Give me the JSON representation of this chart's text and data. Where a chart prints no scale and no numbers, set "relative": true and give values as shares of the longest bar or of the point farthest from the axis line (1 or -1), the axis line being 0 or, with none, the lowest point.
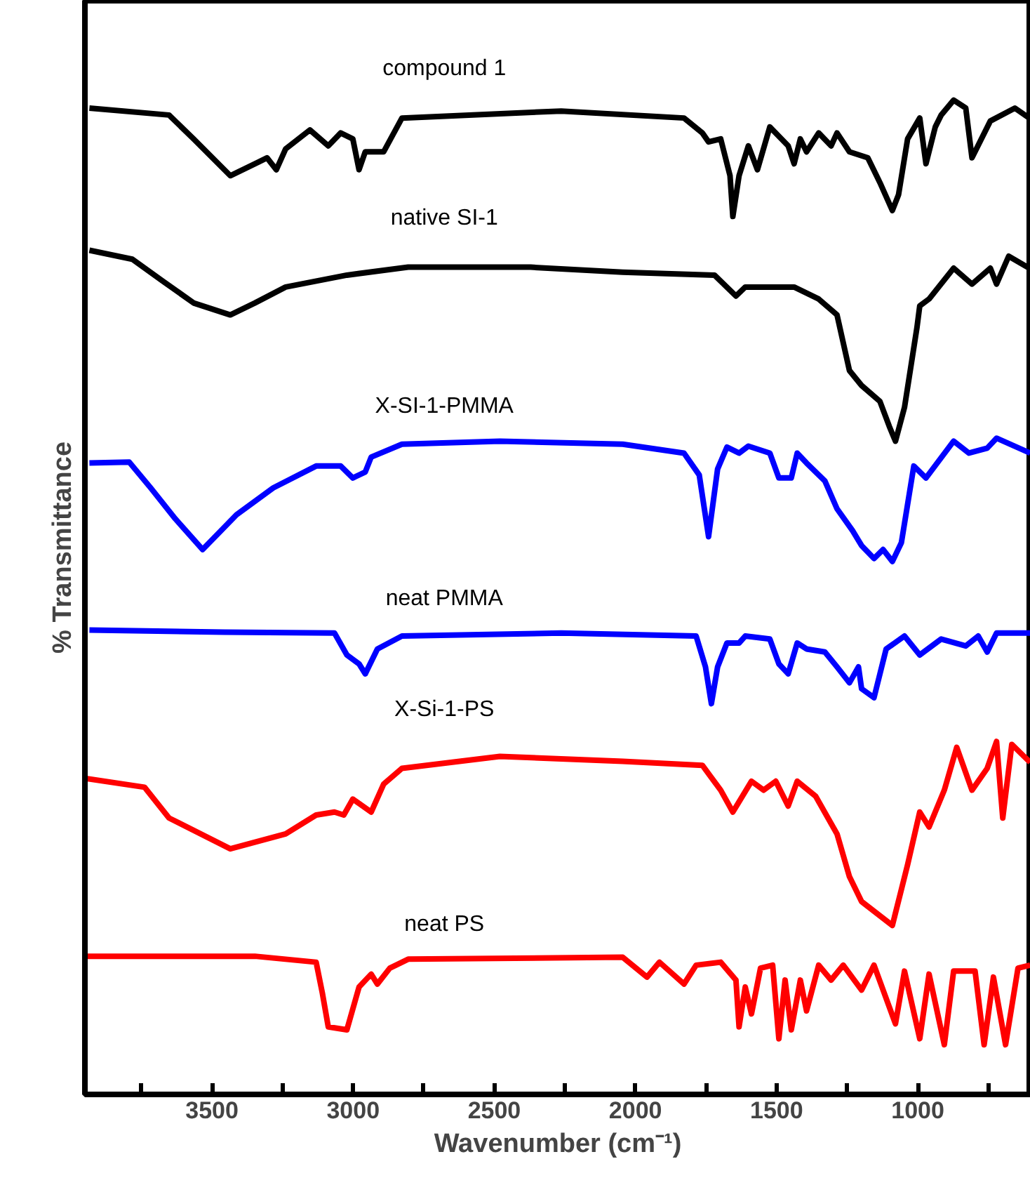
{
  "chart_data": {
    "type": "line",
    "relative": true,
    "xlabel": "Wavenumber (cm⁻¹)",
    "ylabel": "% Transmittance",
    "xlim": [
      3950,
      600
    ],
    "xticks": [
      {
        "value": 3750,
        "label": null
      },
      3500,
      {
        "value": 3250,
        "label": null
      },
      3000,
      {
        "value": 2750,
        "label": null
      },
      2500,
      {
        "value": 2250,
        "label": null
      },
      2000,
      {
        "value": 1750,
        "label": null
      },
      1500,
      {
        "value": 1250,
        "label": null
      },
      1000,
      {
        "value": 750,
        "label": null
      }
    ],
    "grid": false,
    "line_style": "solid",
    "marker": "none",
    "series": [
      {
        "name": "compound 1",
        "color": "#000000",
        "x": [
          3934,
          3652,
          3565,
          3435,
          3348,
          3305,
          3272,
          3239,
          3153,
          3088,
          3044,
          3001,
          2979,
          2957,
          2892,
          2827,
          2263,
          1828,
          1763,
          1741,
          1698,
          1665,
          1655,
          1633,
          1600,
          1568,
          1524,
          1459,
          1438,
          1416,
          1394,
          1351,
          1307,
          1286,
          1242,
          1177,
          1134,
          1090,
          1068,
          1036,
          993,
          971,
          938,
          917,
          873,
          830,
          808,
          743,
          656,
          605
        ],
        "values": [
          0.992,
          0.985,
          0.961,
          0.924,
          0.936,
          0.942,
          0.93,
          0.951,
          0.97,
          0.954,
          0.967,
          0.961,
          0.93,
          0.948,
          0.948,
          0.982,
          0.989,
          0.982,
          0.967,
          0.958,
          0.961,
          0.924,
          0.883,
          0.924,
          0.954,
          0.93,
          0.973,
          0.954,
          0.936,
          0.961,
          0.948,
          0.967,
          0.954,
          0.967,
          0.948,
          0.942,
          0.917,
          0.889,
          0.905,
          0.961,
          0.982,
          0.936,
          0.973,
          0.985,
          1.0,
          0.992,
          0.942,
          0.979,
          0.992,
          0.982
        ]
      },
      {
        "name": "native SI-1",
        "color": "#000000",
        "x": [
          3934,
          3782,
          3674,
          3565,
          3435,
          3348,
          3239,
          3022,
          2805,
          2371,
          2045,
          1720,
          1644,
          1611,
          1438,
          1351,
          1286,
          1242,
          1199,
          1134,
          1101,
          1079,
          1047,
          1003,
          993,
          960,
          873,
          808,
          743,
          721,
          678,
          605
        ],
        "values": [
          0.849,
          0.84,
          0.818,
          0.796,
          0.784,
          0.796,
          0.812,
          0.824,
          0.832,
          0.832,
          0.827,
          0.824,
          0.803,
          0.812,
          0.812,
          0.8,
          0.784,
          0.728,
          0.713,
          0.697,
          0.672,
          0.657,
          0.691,
          0.771,
          0.793,
          0.8,
          0.831,
          0.815,
          0.831,
          0.815,
          0.843,
          0.831
        ]
      },
      {
        "name": "X-SI-1-PMMA",
        "color": "#0000ff",
        "x": [
          3934,
          3793,
          3717,
          3630,
          3533,
          3413,
          3283,
          3131,
          3044,
          3001,
          2957,
          2936,
          2827,
          2480,
          2045,
          1828,
          1774,
          1741,
          1709,
          1676,
          1633,
          1600,
          1524,
          1492,
          1448,
          1427,
          1394,
          1329,
          1286,
          1231,
          1199,
          1155,
          1123,
          1090,
          1058,
          1014,
          971,
          873,
          819,
          754,
          721,
          602
        ],
        "values": [
          0.635,
          0.636,
          0.61,
          0.579,
          0.548,
          0.583,
          0.61,
          0.632,
          0.632,
          0.62,
          0.626,
          0.641,
          0.654,
          0.657,
          0.654,
          0.645,
          0.623,
          0.561,
          0.629,
          0.651,
          0.645,
          0.652,
          0.645,
          0.62,
          0.62,
          0.645,
          0.635,
          0.617,
          0.589,
          0.567,
          0.552,
          0.539,
          0.548,
          0.536,
          0.555,
          0.632,
          0.62,
          0.657,
          0.645,
          0.65,
          0.66,
          0.645
        ]
      },
      {
        "name": "neat PMMA",
        "color": "#0000ff",
        "x": [
          3934,
          3457,
          3066,
          3022,
          2979,
          2957,
          2914,
          2827,
          2263,
          1785,
          1752,
          1731,
          1709,
          1676,
          1633,
          1611,
          1524,
          1492,
          1459,
          1427,
          1394,
          1329,
          1286,
          1242,
          1210,
          1199,
          1155,
          1112,
          1047,
          993,
          917,
          830,
          786,
          754,
          721,
          602
        ],
        "values": [
          0.467,
          0.465,
          0.464,
          0.442,
          0.433,
          0.423,
          0.448,
          0.461,
          0.464,
          0.461,
          0.43,
          0.393,
          0.43,
          0.454,
          0.454,
          0.461,
          0.458,
          0.433,
          0.423,
          0.454,
          0.448,
          0.445,
          0.43,
          0.414,
          0.43,
          0.408,
          0.399,
          0.448,
          0.461,
          0.442,
          0.458,
          0.451,
          0.461,
          0.445,
          0.464,
          0.464
        ]
      },
      {
        "name": "X-Si-1-PS",
        "color": "#ff0000",
        "x": [
          3950,
          3739,
          3652,
          3435,
          3239,
          3131,
          3066,
          3033,
          3001,
          2936,
          2892,
          2827,
          2480,
          2045,
          1763,
          1698,
          1655,
          1589,
          1546,
          1503,
          1459,
          1427,
          1362,
          1286,
          1242,
          1199,
          1090,
          1036,
          993,
          960,
          906,
          862,
          808,
          754,
          721,
          699,
          667,
          602
        ],
        "values": [
          0.318,
          0.309,
          0.278,
          0.247,
          0.262,
          0.281,
          0.284,
          0.281,
          0.297,
          0.284,
          0.312,
          0.328,
          0.34,
          0.335,
          0.331,
          0.306,
          0.284,
          0.315,
          0.306,
          0.315,
          0.29,
          0.315,
          0.3,
          0.262,
          0.219,
          0.194,
          0.17,
          0.231,
          0.284,
          0.269,
          0.306,
          0.349,
          0.306,
          0.328,
          0.355,
          0.278,
          0.352,
          0.334
        ]
      },
      {
        "name": "neat PS",
        "color": "#ff0000",
        "x": [
          3950,
          3348,
          3131,
          3109,
          3088,
          3022,
          2979,
          2936,
          2914,
          2870,
          2805,
          2045,
          1959,
          1915,
          1828,
          1785,
          1698,
          1644,
          1633,
          1611,
          1589,
          1557,
          1514,
          1492,
          1470,
          1448,
          1416,
          1394,
          1351,
          1307,
          1264,
          1199,
          1155,
          1079,
          1047,
          993,
          960,
          906,
          873,
          797,
          765,
          732,
          689,
          645,
          602
        ],
        "values": [
          0.139,
          0.139,
          0.133,
          0.102,
          0.068,
          0.065,
          0.108,
          0.121,
          0.111,
          0.127,
          0.136,
          0.138,
          0.118,
          0.133,
          0.111,
          0.13,
          0.133,
          0.115,
          0.068,
          0.108,
          0.081,
          0.127,
          0.13,
          0.056,
          0.115,
          0.065,
          0.115,
          0.084,
          0.13,
          0.115,
          0.13,
          0.105,
          0.13,
          0.071,
          0.124,
          0.056,
          0.121,
          0.05,
          0.124,
          0.124,
          0.05,
          0.118,
          0.05,
          0.127,
          0.13
        ]
      }
    ]
  }
}
